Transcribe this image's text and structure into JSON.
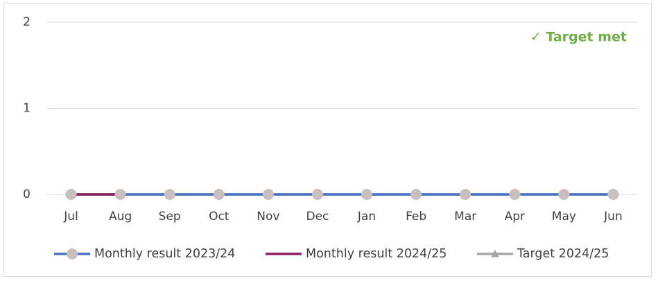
{
  "chart_data": {
    "type": "line",
    "annotation": "✓ Target met",
    "categories": [
      "Jul",
      "Aug",
      "Sep",
      "Oct",
      "Nov",
      "Dec",
      "Jan",
      "Feb",
      "Mar",
      "Apr",
      "May",
      "Jun"
    ],
    "series": [
      {
        "name": "Monthly result 2023/24",
        "color": "#4472c4",
        "marker": "circle",
        "marker_color": "#c9bfbf",
        "values": [
          0,
          0,
          0,
          0,
          0,
          0,
          0,
          0,
          0,
          0,
          0,
          0
        ]
      },
      {
        "name": "Monthly result 2024/25",
        "color": "#8e1f5f",
        "marker": "none",
        "values": [
          0,
          0,
          null,
          null,
          null,
          null,
          null,
          null,
          null,
          null,
          null,
          null
        ]
      },
      {
        "name": "Target 2024/25",
        "color": "#a5a5a5",
        "marker": "triangle",
        "values": [
          0,
          0,
          0,
          0,
          0,
          0,
          0,
          0,
          0,
          0,
          0,
          0
        ]
      }
    ],
    "ylim": [
      0,
      2
    ],
    "yticks": [
      0,
      1,
      2
    ],
    "grid": true
  }
}
